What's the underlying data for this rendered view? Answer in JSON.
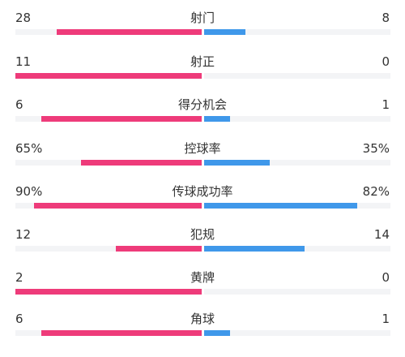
{
  "colors": {
    "home": "#ee3b7a",
    "away": "#3f98ea",
    "track": "#f3f4f6"
  },
  "stats": [
    {
      "label": "射门",
      "home": "28",
      "away": "8",
      "home_share": 0.78,
      "away_share": 0.22
    },
    {
      "label": "射正",
      "home": "11",
      "away": "0",
      "home_share": 1.0,
      "away_share": 0.0
    },
    {
      "label": "得分机会",
      "home": "6",
      "away": "1",
      "home_share": 0.86,
      "away_share": 0.14
    },
    {
      "label": "控球率",
      "home": "65%",
      "away": "35%",
      "home_share": 0.65,
      "away_share": 0.35
    },
    {
      "label": "传球成功率",
      "home": "90%",
      "away": "82%",
      "home_share": 0.9,
      "away_share": 0.82
    },
    {
      "label": "犯规",
      "home": "12",
      "away": "14",
      "home_share": 0.46,
      "away_share": 0.54
    },
    {
      "label": "黄牌",
      "home": "2",
      "away": "0",
      "home_share": 1.0,
      "away_share": 0.0
    },
    {
      "label": "角球",
      "home": "6",
      "away": "1",
      "home_share": 0.86,
      "away_share": 0.14
    }
  ]
}
